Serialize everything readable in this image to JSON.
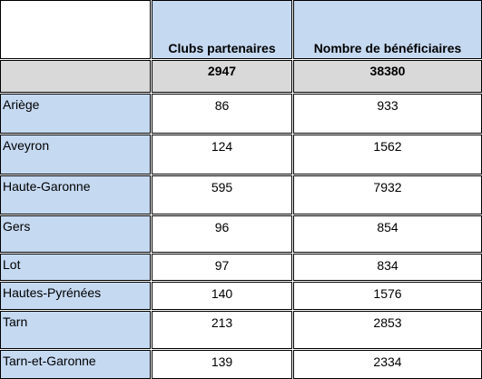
{
  "columns": {
    "clubs": "Clubs partenaires",
    "beneficiaires": "Nombre de bénéficiaires"
  },
  "totals": {
    "clubs": "2947",
    "beneficiaires": "38380"
  },
  "rows": [
    {
      "label": "Ariège",
      "clubs": "86",
      "beneficiaires": "933"
    },
    {
      "label": "Aveyron",
      "clubs": "124",
      "beneficiaires": "1562"
    },
    {
      "label": "Haute-Garonne",
      "clubs": "595",
      "beneficiaires": "7932"
    },
    {
      "label": "Gers",
      "clubs": "96",
      "beneficiaires": "854"
    },
    {
      "label": "Lot",
      "clubs": "97",
      "beneficiaires": "834"
    },
    {
      "label": "Hautes-Pyrénées",
      "clubs": "140",
      "beneficiaires": "1576"
    },
    {
      "label": "Tarn",
      "clubs": "213",
      "beneficiaires": "2853"
    },
    {
      "label": "Tarn-et-Garonne",
      "clubs": "139",
      "beneficiaires": "2334"
    }
  ]
}
